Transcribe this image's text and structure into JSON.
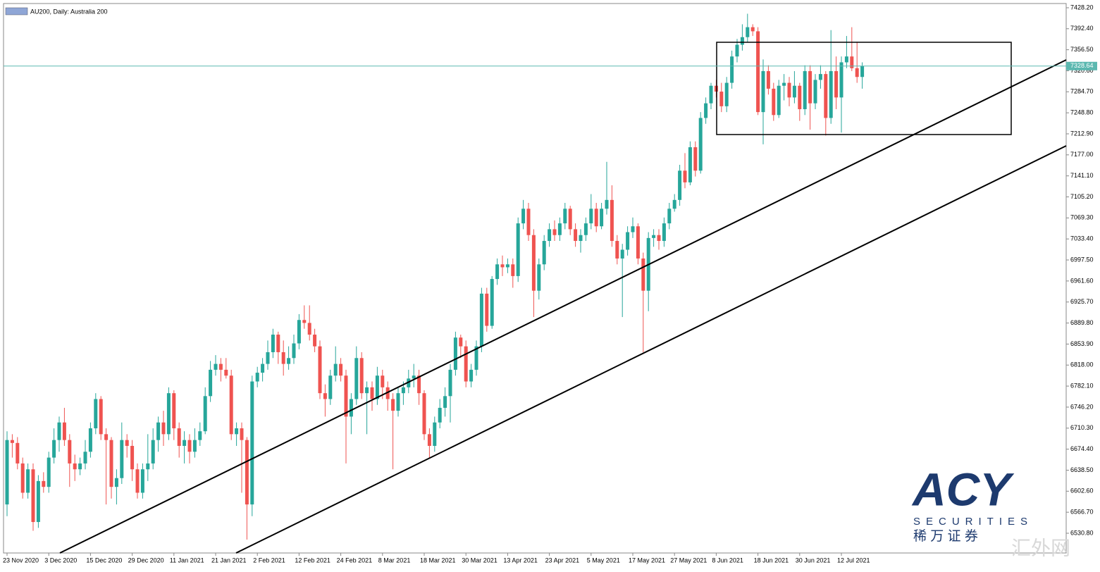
{
  "chart_data": {
    "type": "candlestick",
    "title": "AU200, Daily:  Australia 200",
    "categories": [
      "23 Nov 2020",
      null,
      null,
      null,
      null,
      null,
      null,
      null,
      "3 Dec 2020",
      null,
      null,
      null,
      null,
      null,
      null,
      null,
      "15 Dec 2020",
      null,
      null,
      null,
      null,
      null,
      null,
      null,
      "29 Dec 2020",
      null,
      null,
      null,
      null,
      null,
      null,
      null,
      "11 Jan 2021",
      null,
      null,
      null,
      null,
      null,
      null,
      null,
      "21 Jan 2021",
      null,
      null,
      null,
      null,
      null,
      null,
      null,
      "2 Feb 2021",
      null,
      null,
      null,
      null,
      null,
      null,
      null,
      "12 Feb 2021",
      null,
      null,
      null,
      null,
      null,
      null,
      null,
      "24 Feb 2021",
      null,
      null,
      null,
      null,
      null,
      null,
      null,
      "8 Mar 2021",
      null,
      null,
      null,
      null,
      null,
      null,
      null,
      "18 Mar 2021",
      null,
      null,
      null,
      null,
      null,
      null,
      null,
      "30 Mar 2021",
      null,
      null,
      null,
      null,
      null,
      null,
      null,
      "13 Apr 2021",
      null,
      null,
      null,
      null,
      null,
      null,
      null,
      "23 Apr 2021",
      null,
      null,
      null,
      null,
      null,
      null,
      null,
      "5 May 2021",
      null,
      null,
      null,
      null,
      null,
      null,
      null,
      "17 May 2021",
      null,
      null,
      null,
      null,
      null,
      null,
      null,
      "27 May 2021",
      null,
      null,
      null,
      null,
      null,
      null,
      null,
      "8 Jun 2021",
      null,
      null,
      null,
      null,
      null,
      null,
      null,
      "18 Jun 2021",
      null,
      null,
      null,
      null,
      null,
      null,
      null,
      "30 Jun 2021",
      null,
      null,
      null,
      null,
      null,
      null,
      null,
      "12 Jul 2021",
      null,
      null,
      null,
      null
    ],
    "ohlc": [
      [
        6580,
        6705,
        6560,
        6690
      ],
      [
        6690,
        6700,
        6660,
        6685
      ],
      [
        6685,
        6695,
        6640,
        6650
      ],
      [
        6650,
        6660,
        6590,
        6600
      ],
      [
        6600,
        6650,
        6590,
        6640
      ],
      [
        6640,
        6650,
        6535,
        6550
      ],
      [
        6550,
        6630,
        6540,
        6620
      ],
      [
        6620,
        6635,
        6600,
        6610
      ],
      [
        6610,
        6670,
        6600,
        6660
      ],
      [
        6660,
        6710,
        6650,
        6690
      ],
      [
        6690,
        6730,
        6670,
        6720
      ],
      [
        6720,
        6745,
        6680,
        6690
      ],
      [
        6690,
        6700,
        6610,
        6650
      ],
      [
        6650,
        6665,
        6620,
        6640
      ],
      [
        6640,
        6660,
        6630,
        6650
      ],
      [
        6650,
        6690,
        6640,
        6670
      ],
      [
        6670,
        6720,
        6660,
        6710
      ],
      [
        6710,
        6770,
        6700,
        6760
      ],
      [
        6760,
        6765,
        6690,
        6700
      ],
      [
        6700,
        6710,
        6580,
        6690
      ],
      [
        6690,
        6695,
        6590,
        6610
      ],
      [
        6610,
        6640,
        6580,
        6625
      ],
      [
        6625,
        6720,
        6615,
        6690
      ],
      [
        6690,
        6700,
        6660,
        6680
      ],
      [
        6680,
        6690,
        6620,
        6640
      ],
      [
        6640,
        6650,
        6590,
        6600
      ],
      [
        6600,
        6650,
        6590,
        6640
      ],
      [
        6640,
        6700,
        6620,
        6650
      ],
      [
        6650,
        6710,
        6640,
        6690
      ],
      [
        6690,
        6730,
        6670,
        6720
      ],
      [
        6720,
        6740,
        6680,
        6700
      ],
      [
        6700,
        6780,
        6690,
        6770
      ],
      [
        6770,
        6775,
        6690,
        6710
      ],
      [
        6710,
        6720,
        6660,
        6680
      ],
      [
        6680,
        6705,
        6650,
        6690
      ],
      [
        6690,
        6700,
        6650,
        6670
      ],
      [
        6670,
        6710,
        6660,
        6690
      ],
      [
        6690,
        6720,
        6680,
        6705
      ],
      [
        6705,
        6780,
        6700,
        6765
      ],
      [
        6765,
        6825,
        6755,
        6810
      ],
      [
        6810,
        6835,
        6800,
        6820
      ],
      [
        6820,
        6830,
        6790,
        6810
      ],
      [
        6810,
        6830,
        6795,
        6800
      ],
      [
        6800,
        6810,
        6690,
        6700
      ],
      [
        6700,
        6720,
        6680,
        6710
      ],
      [
        6710,
        6720,
        6600,
        6690
      ],
      [
        6690,
        6695,
        6520,
        6580
      ],
      [
        6580,
        6800,
        6560,
        6790
      ],
      [
        6790,
        6815,
        6780,
        6805
      ],
      [
        6805,
        6830,
        6790,
        6820
      ],
      [
        6820,
        6860,
        6810,
        6840
      ],
      [
        6840,
        6880,
        6830,
        6870
      ],
      [
        6870,
        6875,
        6820,
        6840
      ],
      [
        6840,
        6860,
        6800,
        6820
      ],
      [
        6820,
        6850,
        6810,
        6830
      ],
      [
        6830,
        6870,
        6820,
        6855
      ],
      [
        6855,
        6905,
        6845,
        6895
      ],
      [
        6895,
        6920,
        6880,
        6890
      ],
      [
        6890,
        6920,
        6860,
        6870
      ],
      [
        6870,
        6880,
        6840,
        6850
      ],
      [
        6850,
        6860,
        6760,
        6770
      ],
      [
        6770,
        6785,
        6730,
        6760
      ],
      [
        6760,
        6810,
        6750,
        6800
      ],
      [
        6800,
        6850,
        6790,
        6820
      ],
      [
        6820,
        6830,
        6790,
        6800
      ],
      [
        6800,
        6810,
        6650,
        6730
      ],
      [
        6730,
        6770,
        6700,
        6760
      ],
      [
        6760,
        6850,
        6750,
        6830
      ],
      [
        6830,
        6840,
        6760,
        6770
      ],
      [
        6770,
        6790,
        6700,
        6780
      ],
      [
        6780,
        6790,
        6740,
        6760
      ],
      [
        6760,
        6815,
        6750,
        6800
      ],
      [
        6800,
        6810,
        6760,
        6780
      ],
      [
        6780,
        6790,
        6740,
        6760
      ],
      [
        6760,
        6770,
        6640,
        6740
      ],
      [
        6740,
        6780,
        6730,
        6770
      ],
      [
        6770,
        6790,
        6750,
        6780
      ],
      [
        6780,
        6810,
        6770,
        6795
      ],
      [
        6795,
        6820,
        6780,
        6800
      ],
      [
        6800,
        6810,
        6750,
        6770
      ],
      [
        6770,
        6775,
        6690,
        6700
      ],
      [
        6700,
        6710,
        6660,
        6680
      ],
      [
        6680,
        6730,
        6670,
        6720
      ],
      [
        6720,
        6760,
        6710,
        6745
      ],
      [
        6745,
        6780,
        6730,
        6765
      ],
      [
        6765,
        6820,
        6720,
        6810
      ],
      [
        6810,
        6875,
        6800,
        6865
      ],
      [
        6865,
        6870,
        6830,
        6850
      ],
      [
        6850,
        6860,
        6780,
        6790
      ],
      [
        6790,
        6820,
        6780,
        6810
      ],
      [
        6810,
        6860,
        6800,
        6850
      ],
      [
        6850,
        6950,
        6840,
        6940
      ],
      [
        6940,
        6950,
        6875,
        6885
      ],
      [
        6885,
        6970,
        6880,
        6965
      ],
      [
        6965,
        7000,
        6955,
        6990
      ],
      [
        6990,
        7005,
        6970,
        6985
      ],
      [
        6985,
        7000,
        6975,
        6990
      ],
      [
        6990,
        7000,
        6950,
        6970
      ],
      [
        6970,
        7070,
        6960,
        7060
      ],
      [
        7060,
        7100,
        7050,
        7085
      ],
      [
        7085,
        7095,
        7030,
        7040
      ],
      [
        7040,
        7050,
        6900,
        6945
      ],
      [
        6945,
        7000,
        6930,
        6990
      ],
      [
        6990,
        7040,
        6980,
        7030
      ],
      [
        7030,
        7060,
        7020,
        7050
      ],
      [
        7050,
        7065,
        7030,
        7040
      ],
      [
        7040,
        7070,
        7030,
        7060
      ],
      [
        7060,
        7095,
        7050,
        7085
      ],
      [
        7085,
        7090,
        7040,
        7050
      ],
      [
        7050,
        7060,
        7020,
        7030
      ],
      [
        7030,
        7050,
        7010,
        7040
      ],
      [
        7040,
        7070,
        7030,
        7060
      ],
      [
        7060,
        7110,
        7050,
        7085
      ],
      [
        7085,
        7095,
        7045,
        7055
      ],
      [
        7055,
        7095,
        7050,
        7085
      ],
      [
        7085,
        7165,
        7075,
        7100
      ],
      [
        7100,
        7125,
        7020,
        7030
      ],
      [
        7030,
        7040,
        6990,
        7000
      ],
      [
        7000,
        7025,
        6900,
        7015
      ],
      [
        7015,
        7055,
        7005,
        7045
      ],
      [
        7045,
        7070,
        7035,
        7055
      ],
      [
        7055,
        7060,
        6990,
        7000
      ],
      [
        7000,
        7010,
        6840,
        6945
      ],
      [
        6945,
        7045,
        6910,
        7035
      ],
      [
        7035,
        7050,
        7020,
        7040
      ],
      [
        7040,
        7050,
        7015,
        7030
      ],
      [
        7030,
        7070,
        7020,
        7060
      ],
      [
        7060,
        7095,
        7050,
        7085
      ],
      [
        7085,
        7110,
        7080,
        7100
      ],
      [
        7100,
        7160,
        7090,
        7150
      ],
      [
        7150,
        7180,
        7120,
        7130
      ],
      [
        7130,
        7200,
        7125,
        7190
      ],
      [
        7190,
        7200,
        7140,
        7150
      ],
      [
        7150,
        7250,
        7145,
        7240
      ],
      [
        7240,
        7275,
        7230,
        7265
      ],
      [
        7265,
        7300,
        7255,
        7295
      ],
      [
        7295,
        7305,
        7275,
        7285
      ],
      [
        7285,
        7300,
        7250,
        7260
      ],
      [
        7260,
        7310,
        7250,
        7300
      ],
      [
        7300,
        7355,
        7290,
        7345
      ],
      [
        7345,
        7375,
        7335,
        7365
      ],
      [
        7365,
        7400,
        7355,
        7378
      ],
      [
        7378,
        7418,
        7370,
        7395
      ],
      [
        7395,
        7400,
        7380,
        7388
      ],
      [
        7388,
        7395,
        7245,
        7250
      ],
      [
        7250,
        7340,
        7195,
        7320
      ],
      [
        7320,
        7330,
        7280,
        7290
      ],
      [
        7290,
        7300,
        7235,
        7245
      ],
      [
        7245,
        7305,
        7240,
        7295
      ],
      [
        7295,
        7315,
        7270,
        7300
      ],
      [
        7300,
        7310,
        7260,
        7275
      ],
      [
        7275,
        7320,
        7265,
        7295
      ],
      [
        7295,
        7300,
        7235,
        7255
      ],
      [
        7255,
        7330,
        7245,
        7320
      ],
      [
        7320,
        7330,
        7220,
        7265
      ],
      [
        7265,
        7315,
        7255,
        7305
      ],
      [
        7305,
        7330,
        7290,
        7315
      ],
      [
        7315,
        7320,
        7210,
        7240
      ],
      [
        7240,
        7390,
        7230,
        7320
      ],
      [
        7320,
        7345,
        7255,
        7275
      ],
      [
        7275,
        7345,
        7215,
        7335
      ],
      [
        7335,
        7380,
        7325,
        7345
      ],
      [
        7345,
        7395,
        7320,
        7325
      ],
      [
        7325,
        7370,
        7300,
        7310
      ],
      [
        7310,
        7335,
        7290,
        7328.64
      ]
    ],
    "up_color": "#26a69a",
    "down_color": "#ef5350",
    "ylim": [
      6530.8,
      7428.2
    ],
    "yticks": [
      {
        "value": 7428.2,
        "label": "7428.20"
      },
      {
        "value": 7392.4,
        "label": "7392.40"
      },
      {
        "value": 7356.5,
        "label": "7356.50"
      },
      {
        "value": 7320.6,
        "label": "7320.60"
      },
      {
        "value": 7284.7,
        "label": "7284.70"
      },
      {
        "value": 7248.8,
        "label": "7248.80"
      },
      {
        "value": 7212.9,
        "label": "7212.90"
      },
      {
        "value": 7177,
        "label": "7177.00"
      },
      {
        "value": 7141.1,
        "label": "7141.10"
      },
      {
        "value": 7105.2,
        "label": "7105.20"
      },
      {
        "value": 7069.3,
        "label": "7069.30"
      },
      {
        "value": 7033.4,
        "label": "7033.40"
      },
      {
        "value": 6997.5,
        "label": "6997.50"
      },
      {
        "value": 6961.6,
        "label": "6961.60"
      },
      {
        "value": 6925.7,
        "label": "6925.70"
      },
      {
        "value": 6889.8,
        "label": "6889.80"
      },
      {
        "value": 6853.9,
        "label": "6853.90"
      },
      {
        "value": 6818,
        "label": "6818.00"
      },
      {
        "value": 6782.1,
        "label": "6782.10"
      },
      {
        "value": 6746.2,
        "label": "6746.20"
      },
      {
        "value": 6710.3,
        "label": "6710.30"
      },
      {
        "value": 6674.4,
        "label": "6674.40"
      },
      {
        "value": 6638.5,
        "label": "6638.50"
      },
      {
        "value": 6602.6,
        "label": "6602.60"
      },
      {
        "value": 6566.7,
        "label": "6566.70"
      },
      {
        "value": 6530.8,
        "label": "6530.80"
      }
    ],
    "last_price": 7328.64,
    "last_price_color": "#5bb8b0"
  },
  "logo": {
    "brand": "ACY",
    "sub": "SECURITIES",
    "cn": "稀 万 证 券",
    "watermark": "汇外网"
  }
}
